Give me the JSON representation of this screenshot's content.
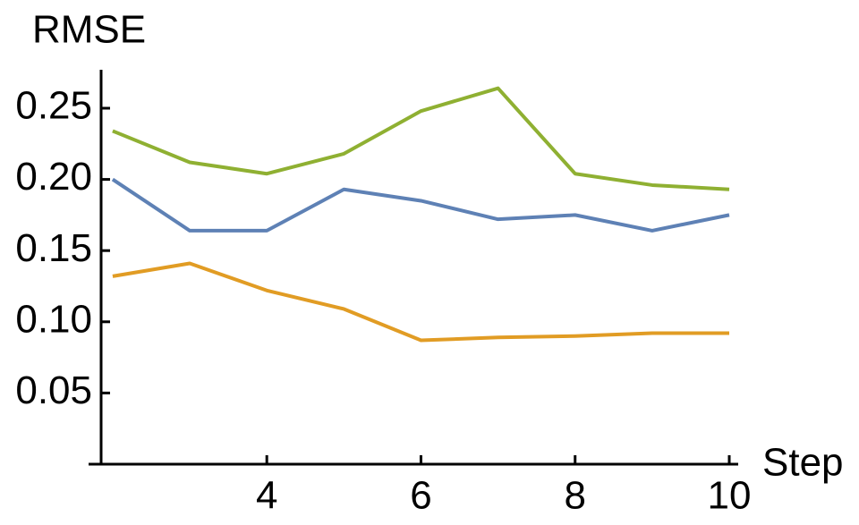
{
  "chart_data": {
    "type": "line",
    "ylabel": "RMSE",
    "xlabel": "Step",
    "x": [
      2,
      3,
      4,
      5,
      6,
      7,
      8,
      9,
      10
    ],
    "series": [
      {
        "color": "#5e81b5",
        "values": [
          0.2,
          0.164,
          0.164,
          0.193,
          0.185,
          0.172,
          0.175,
          0.164,
          0.175
        ]
      },
      {
        "color": "#e19c24",
        "values": [
          0.132,
          0.141,
          0.122,
          0.109,
          0.087,
          0.089,
          0.09,
          0.092,
          0.092
        ]
      },
      {
        "color": "#8fb032",
        "values": [
          0.234,
          0.212,
          0.204,
          0.218,
          0.248,
          0.264,
          0.204,
          0.196,
          0.193
        ]
      }
    ],
    "xlim": [
      1.85,
      10
    ],
    "ylim": [
      0,
      0.277
    ],
    "xticks": [
      4,
      6,
      8,
      10
    ],
    "yticks": [
      {
        "value": 0.05,
        "label": "0.05"
      },
      {
        "value": 0.1,
        "label": "0.10"
      },
      {
        "value": 0.15,
        "label": "0.15"
      },
      {
        "value": 0.2,
        "label": "0.20"
      },
      {
        "value": 0.25,
        "label": "0.25"
      }
    ]
  }
}
